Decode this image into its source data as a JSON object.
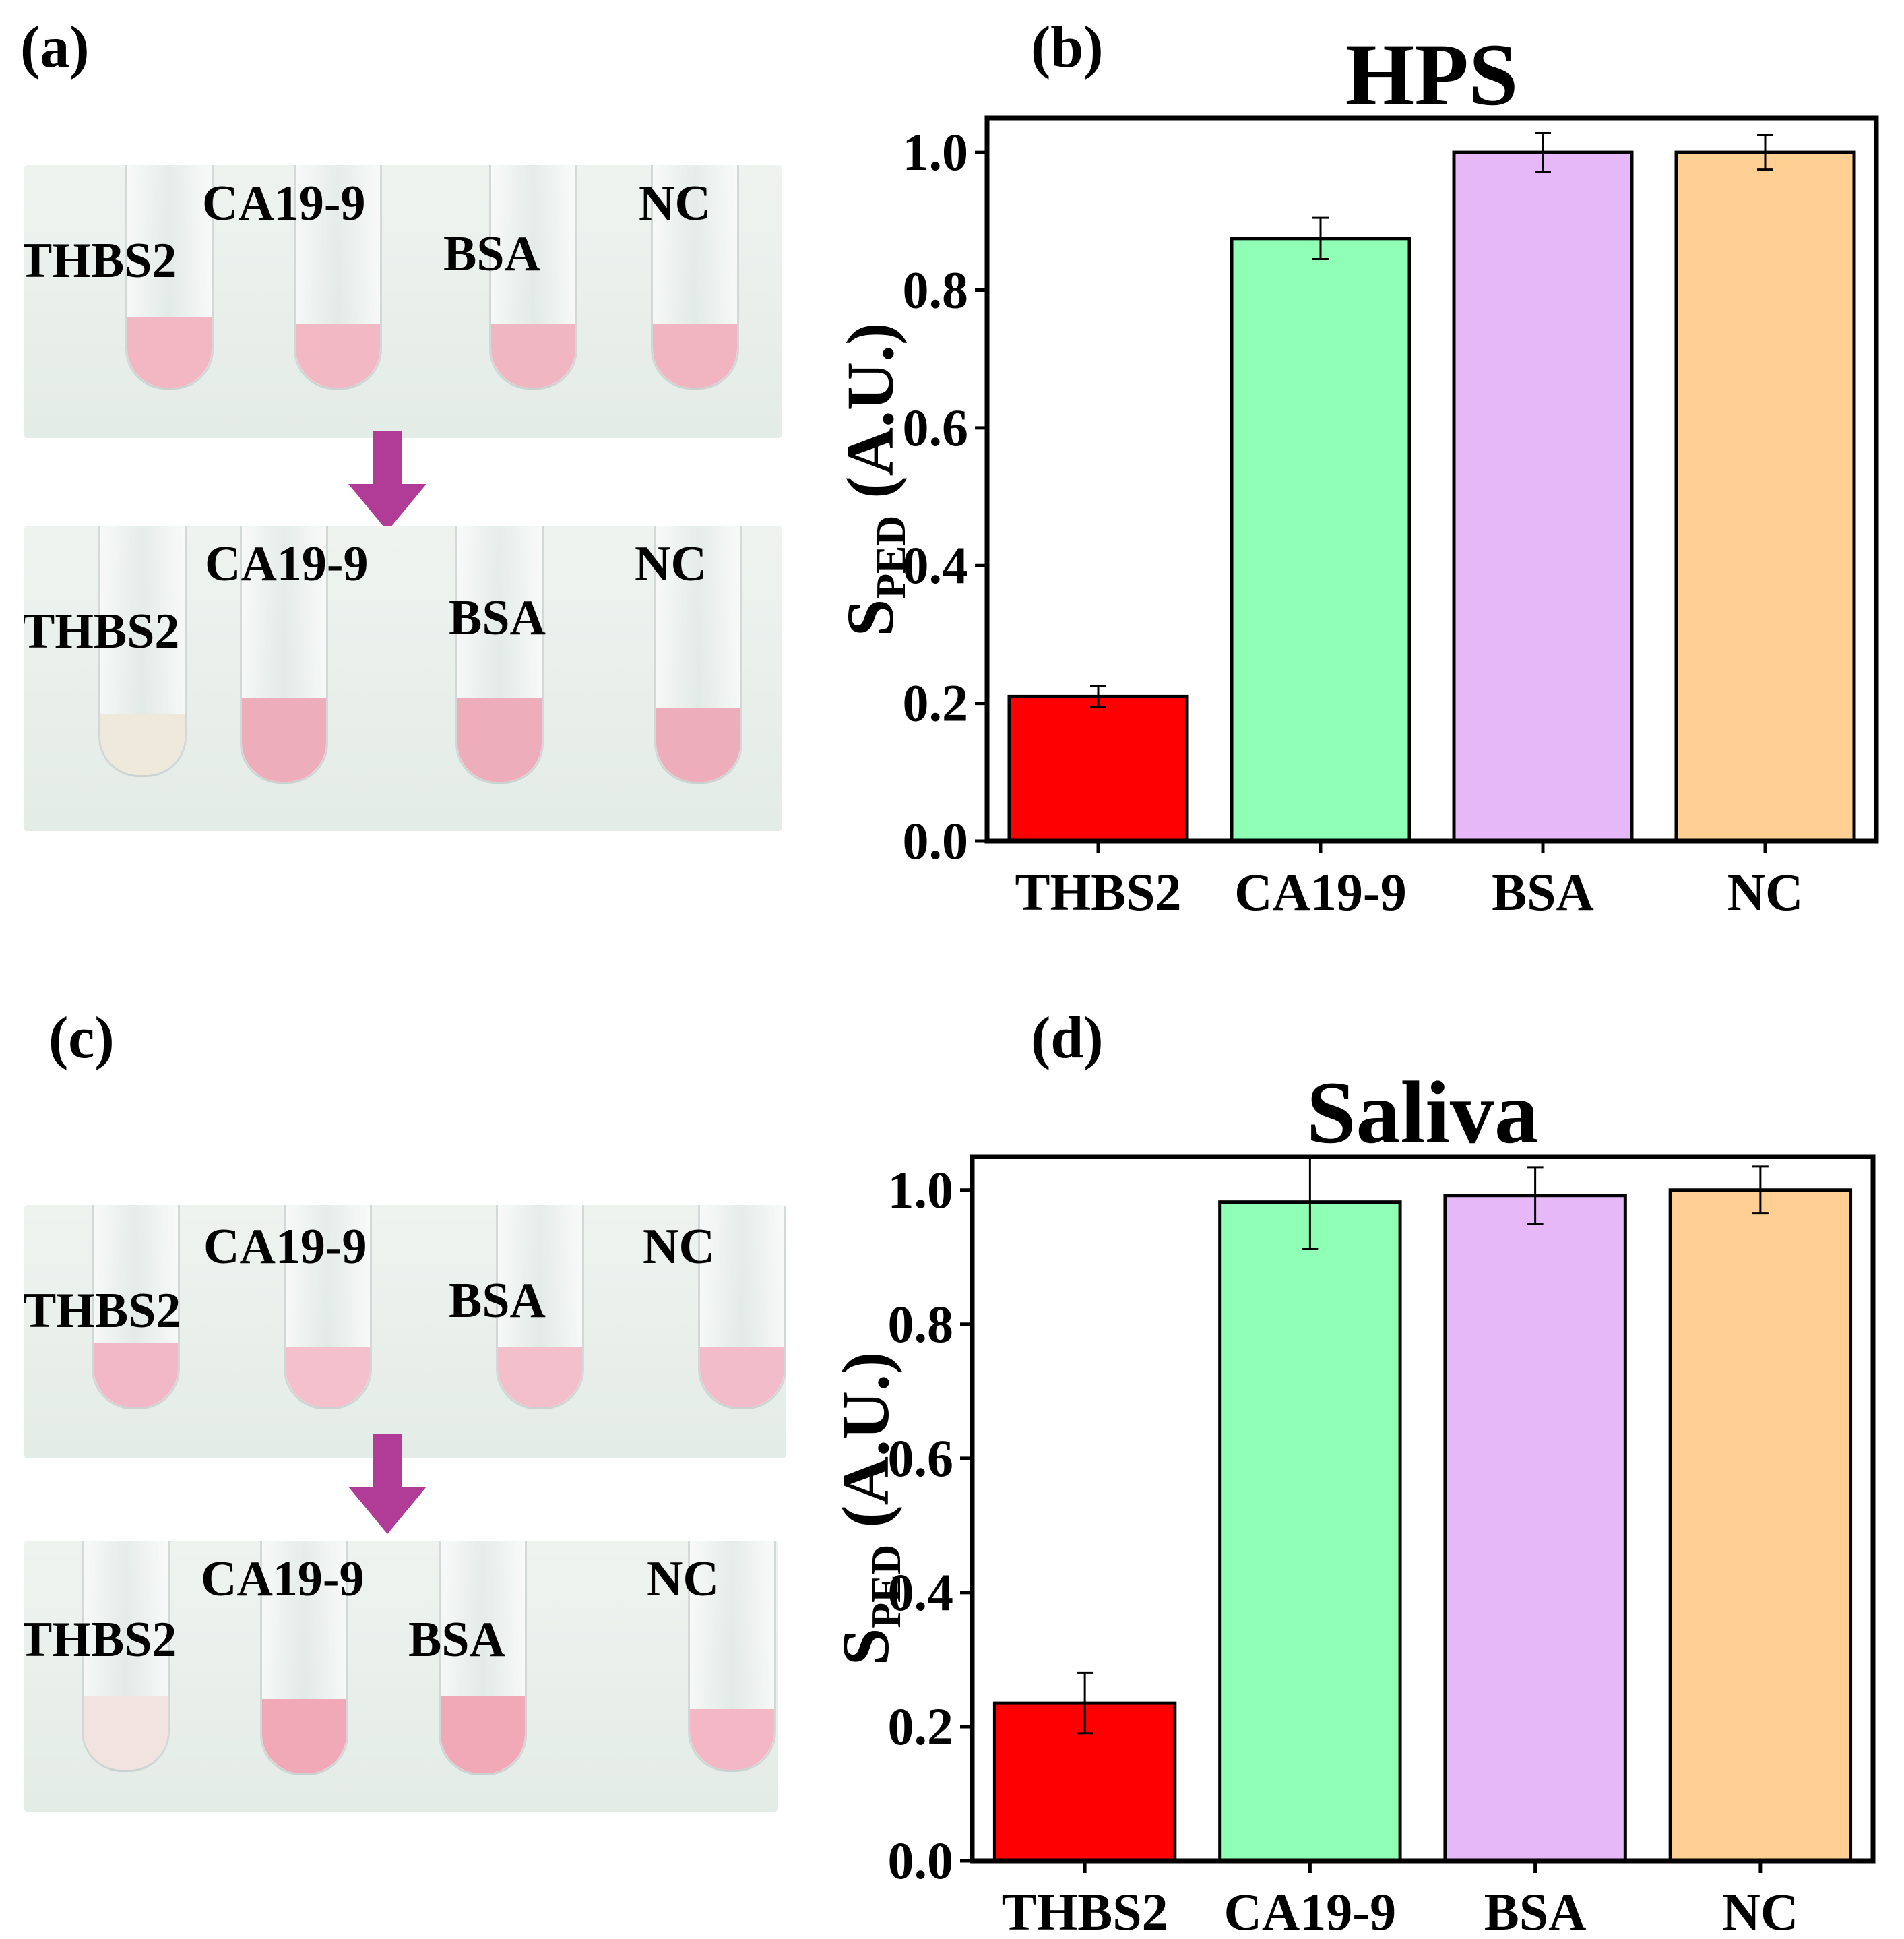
{
  "panels": {
    "a": {
      "label": "(a)"
    },
    "b": {
      "label": "(b)"
    },
    "c": {
      "label": "(c)"
    },
    "d": {
      "label": "(d)"
    }
  },
  "photos": {
    "a_before": {
      "tubes": [
        "THBS2",
        "CA19-9",
        "BSA",
        "NC"
      ],
      "liquid_colors": [
        "#f2b7c2",
        "#f2b9c4",
        "#f0b7c2",
        "#f0b5c1"
      ]
    },
    "a_after": {
      "tubes": [
        "THBS2",
        "CA19-9",
        "BSA",
        "NC"
      ],
      "liquid_colors": [
        "#efe9dc",
        "#eeadbb",
        "#eeadbb",
        "#eeadbb"
      ]
    },
    "c_before": {
      "tubes": [
        "THBS2",
        "CA19-9",
        "BSA",
        "NC"
      ],
      "liquid_colors": [
        "#f3b8c8",
        "#f3c0cc",
        "#f3bfcb",
        "#f3bccb"
      ]
    },
    "c_after": {
      "tubes": [
        "THBS2",
        "CA19-9",
        "BSA",
        "NC"
      ],
      "liquid_colors": [
        "#f1e3df",
        "#f1a9b8",
        "#f1a9b8",
        "#f3b7c6"
      ]
    },
    "arrow_color": "#b03c97",
    "background_color": "#e4ece7"
  },
  "chart_data": [
    {
      "type": "bar",
      "title": "HPS",
      "categories": [
        "THBS2",
        "CA19-9",
        "BSA",
        "NC"
      ],
      "values": [
        0.21,
        0.875,
        1.0,
        1.0
      ],
      "errors": [
        0.015,
        0.03,
        0.028,
        0.025
      ],
      "colors": [
        "#ff0000",
        "#8effb4",
        "#e7b8f7",
        "#ffcf93"
      ],
      "ylabel_main": "S",
      "ylabel_sub": "PED",
      "ylabel_unit": " (A.U.)",
      "ylim": [
        0,
        1.05
      ],
      "yticks": [
        0.0,
        0.2,
        0.4,
        0.6,
        0.8,
        1.0
      ],
      "yticklabels": [
        "0.0",
        "0.2",
        "0.4",
        "0.6",
        "0.8",
        "1.0"
      ]
    },
    {
      "type": "bar",
      "title": "Saliva",
      "categories": [
        "THBS2",
        "CA19-9",
        "BSA",
        "NC"
      ],
      "values": [
        0.235,
        0.982,
        0.992,
        1.0
      ],
      "errors": [
        0.045,
        0.07,
        0.042,
        0.035
      ],
      "colors": [
        "#ff0000",
        "#8effb4",
        "#e7b8f7",
        "#ffcf93"
      ],
      "ylabel_main": "S",
      "ylabel_sub": "PED",
      "ylabel_unit": " (A.U.)",
      "ylim": [
        0,
        1.05
      ],
      "yticks": [
        0.0,
        0.2,
        0.4,
        0.6,
        0.8,
        1.0
      ],
      "yticklabels": [
        "0.0",
        "0.2",
        "0.4",
        "0.6",
        "0.8",
        "1.0"
      ]
    }
  ]
}
